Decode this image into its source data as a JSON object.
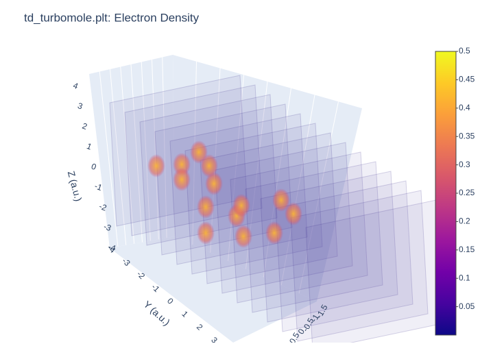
{
  "chart_data": {
    "type": "volume",
    "title": "td_turbomole.plt: Electron Density",
    "zaxis_title": "Z (a.u.)",
    "yaxis_title": "Y (a.u.)",
    "zlim": [
      -4,
      4
    ],
    "zticks": [
      -4,
      -3,
      -2,
      -1,
      0,
      1,
      2,
      3,
      4
    ],
    "ylim": [
      -4,
      3
    ],
    "yticks": [
      -4,
      -3,
      -2,
      -1,
      0,
      1,
      2,
      3
    ],
    "xlim": [
      -1.5,
      0.5
    ],
    "xticks": [
      -1.5,
      -1,
      -0.5,
      0,
      0.5
    ],
    "colorscale": [
      "#0d0887",
      "#46039f",
      "#7201a8",
      "#9c179e",
      "#bd3786",
      "#d8576b",
      "#ed7953",
      "#fb9f3a",
      "#fdca26",
      "#f0f921"
    ],
    "clim": [
      0,
      0.5
    ],
    "colorbar_ticks": [
      0.05,
      0.1,
      0.15,
      0.2,
      0.25,
      0.3,
      0.35,
      0.4,
      0.45,
      0.5
    ]
  }
}
